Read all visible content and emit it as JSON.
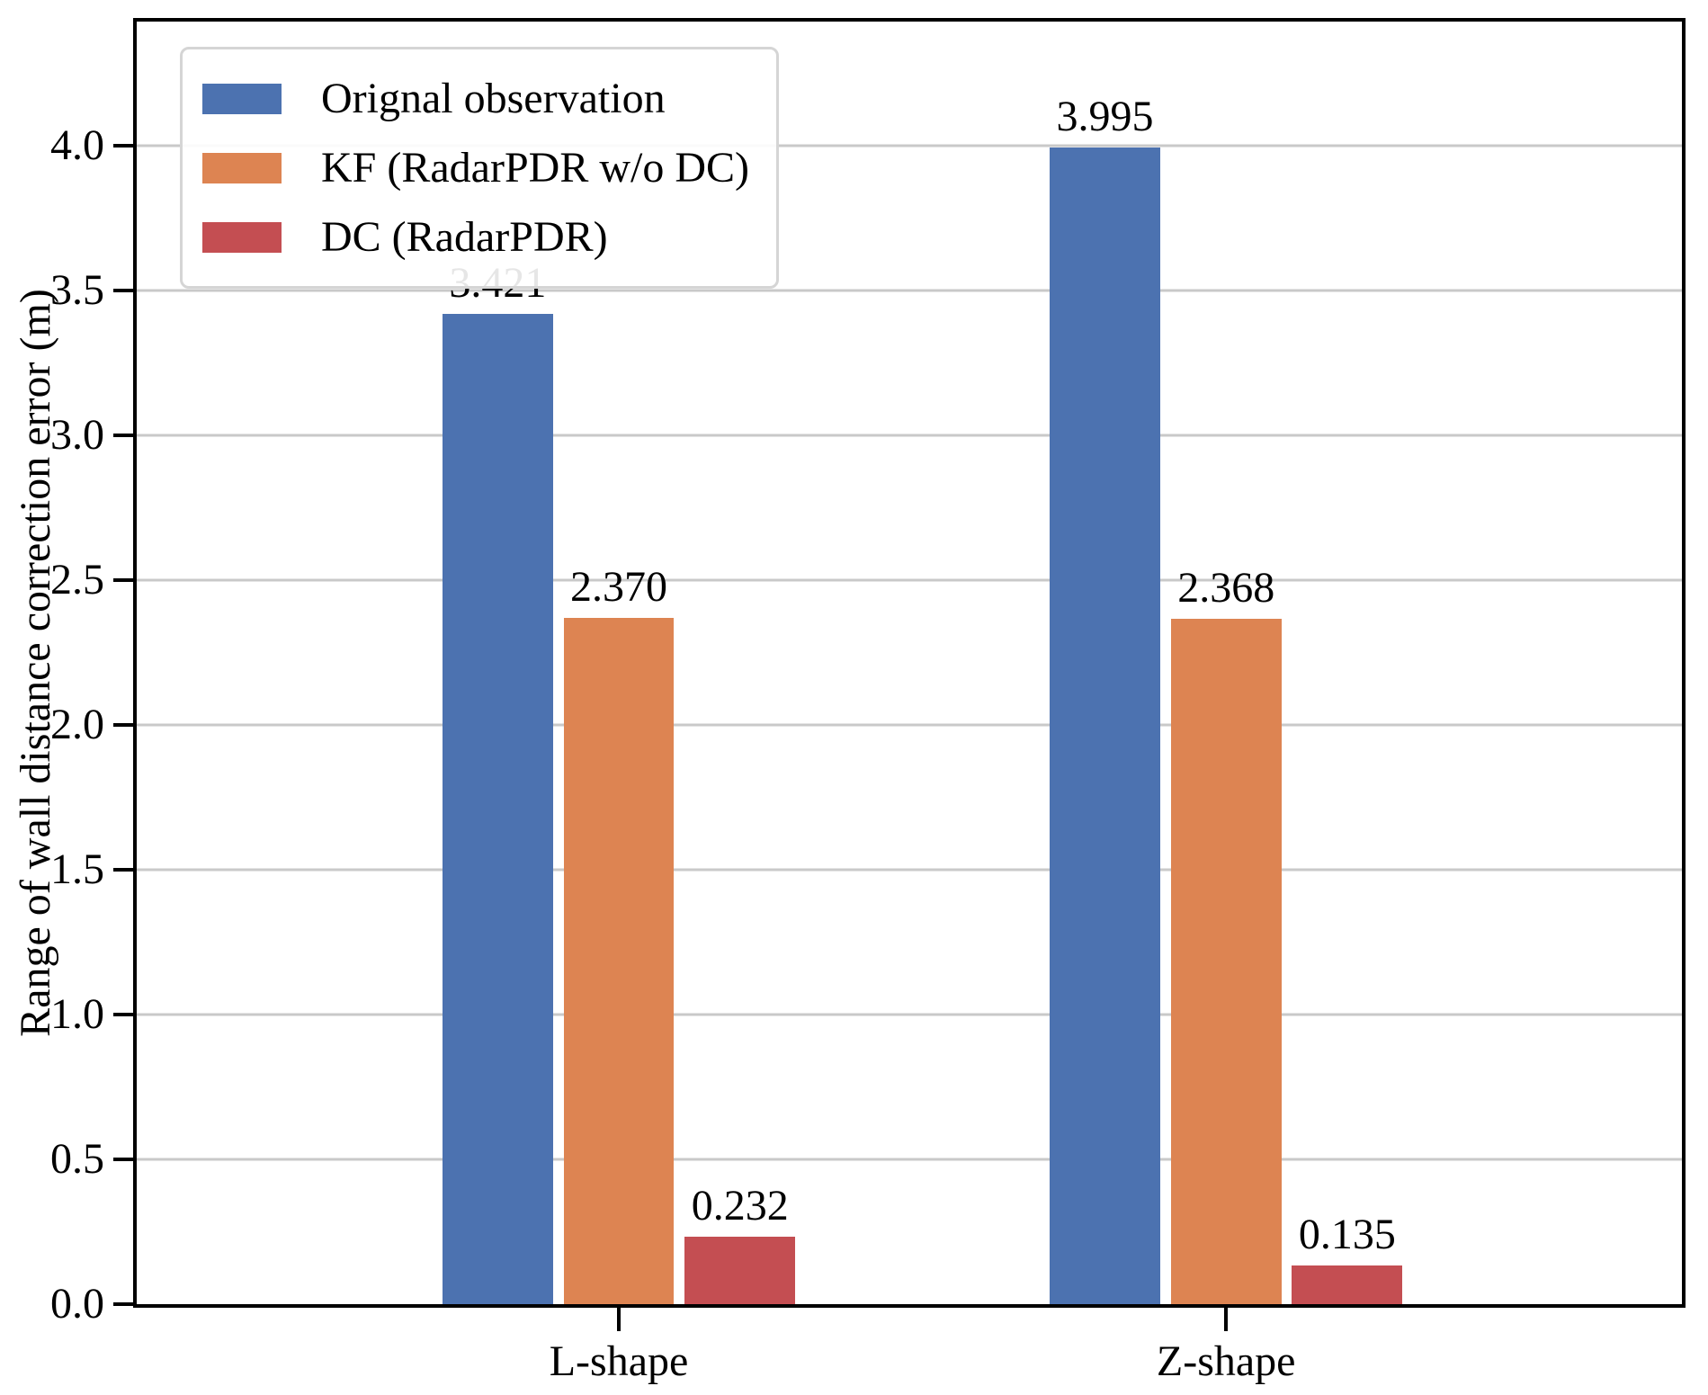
{
  "chart_data": {
    "type": "bar",
    "title": "",
    "xlabel": "",
    "ylabel": "Range of wall distance correction error (m)",
    "categories": [
      "L-shape",
      "Z-shape"
    ],
    "series": [
      {
        "name": "Orignal observation",
        "color": "#4C72B0",
        "values": [
          3.421,
          3.995
        ]
      },
      {
        "name": "KF (RadarPDR w/o DC)",
        "color": "#DD8452",
        "values": [
          2.37,
          2.368
        ]
      },
      {
        "name": "DC (RadarPDR)",
        "color": "#C44E52",
        "values": [
          0.232,
          0.135
        ]
      }
    ],
    "value_labels": [
      [
        "3.421",
        "2.370",
        "0.232"
      ],
      [
        "3.995",
        "2.368",
        "0.135"
      ]
    ],
    "yticks": [
      "0.0",
      "0.5",
      "1.0",
      "1.5",
      "2.0",
      "2.5",
      "3.0",
      "3.5",
      "4.0"
    ],
    "ylim": [
      0,
      4.43
    ],
    "grid": "horizontal",
    "legend_position": "upper-left",
    "colors": {
      "grid": "#c9c9c9",
      "axis": "#000000",
      "background": "#ffffff"
    }
  }
}
